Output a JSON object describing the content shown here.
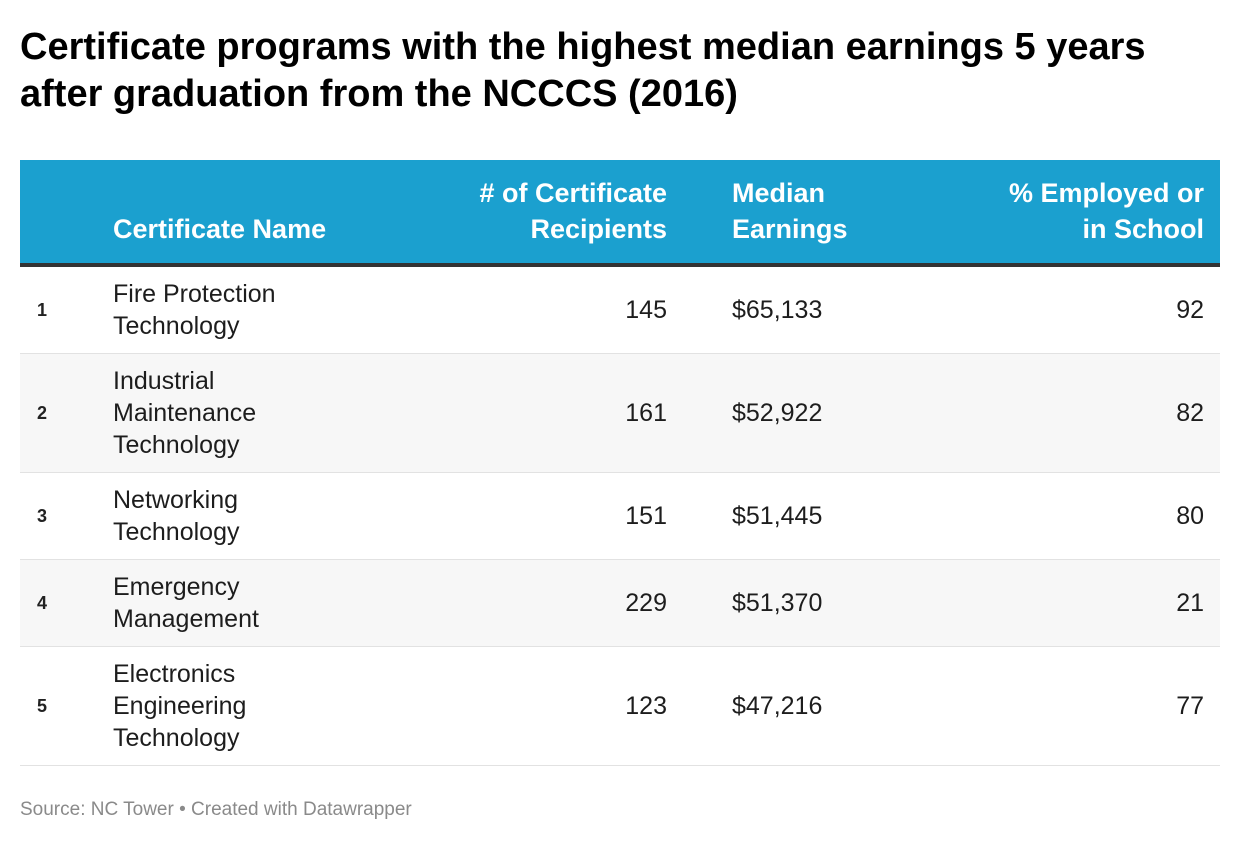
{
  "chart_data": {
    "type": "table",
    "title": "Certificate programs with the highest median earnings 5 years after graduation from the NCCCS (2016)",
    "columns": {
      "name": "Certificate Name",
      "recipients": "# of Certificate Recipients",
      "earnings": "Median Earnings",
      "employed": "% Employed or in School"
    },
    "rows": [
      {
        "rank": "1",
        "name": "Fire Protection Technology",
        "recipients": 145,
        "earnings": "$65,133",
        "employed": 92
      },
      {
        "rank": "2",
        "name": "Industrial Maintenance Technology",
        "recipients": 161,
        "earnings": "$52,922",
        "employed": 82
      },
      {
        "rank": "3",
        "name": "Networking Technology",
        "recipients": 151,
        "earnings": "$51,445",
        "employed": 80
      },
      {
        "rank": "4",
        "name": "Emergency Management",
        "recipients": 229,
        "earnings": "$51,370",
        "employed": 21
      },
      {
        "rank": "5",
        "name": "Electronics Engineering Technology",
        "recipients": 123,
        "earnings": "$47,216",
        "employed": 77
      }
    ],
    "source": "Source: NC Tower • Created with Datawrapper"
  },
  "colors": {
    "header_bg": "#1ba0cf",
    "header_text": "#ffffff",
    "header_rule": "#333333",
    "alt_row": "#f7f7f7",
    "source_text": "#8a8a8a"
  }
}
